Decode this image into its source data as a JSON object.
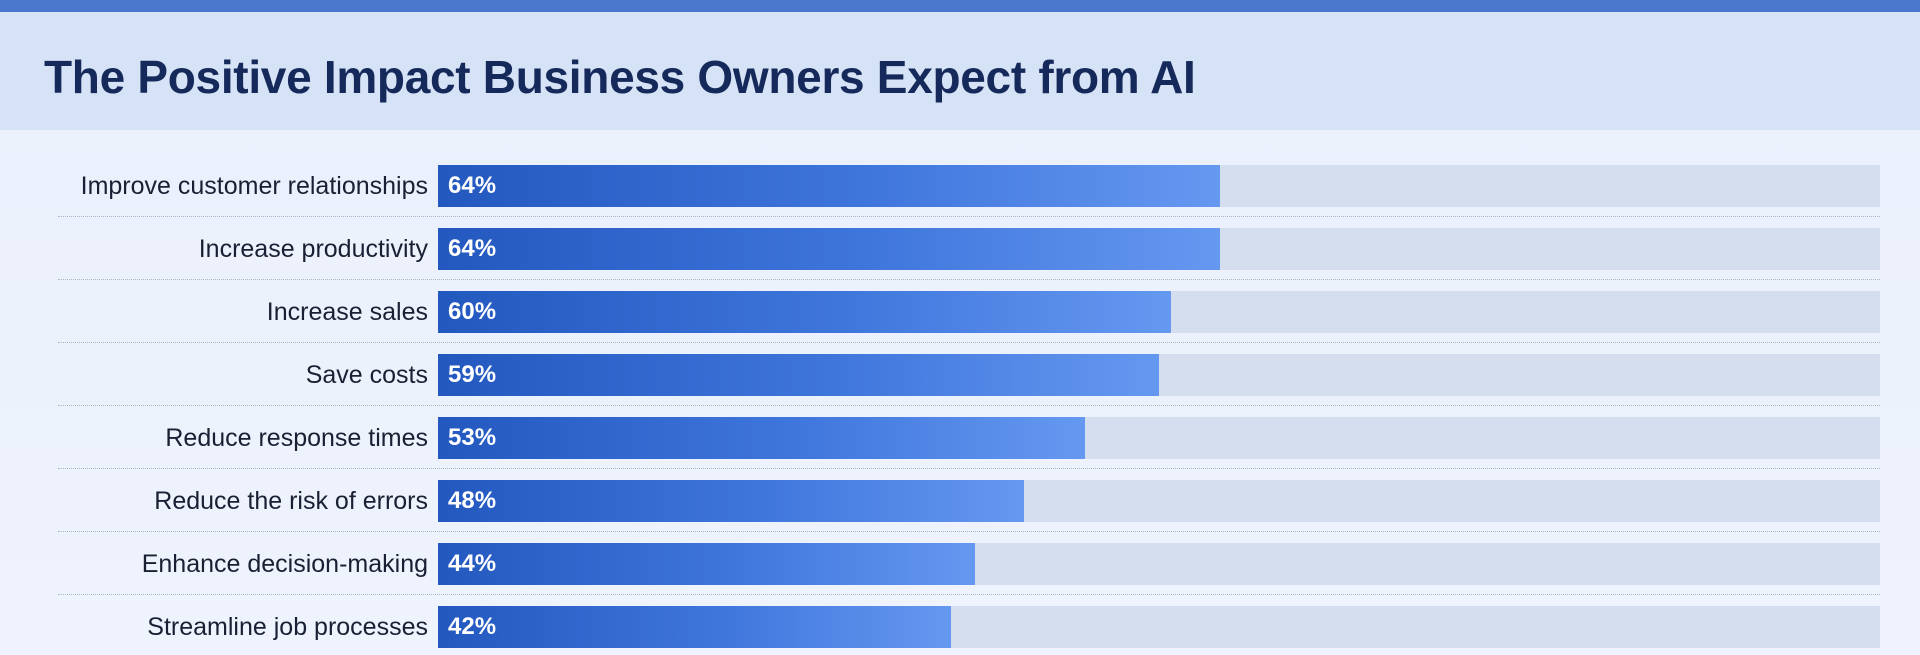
{
  "chart_data": {
    "type": "bar",
    "orientation": "horizontal",
    "title": "The Positive Impact Business Owners Expect from AI",
    "xlim": [
      0,
      100
    ],
    "unit": "%",
    "grid": false,
    "categories": [
      "Improve customer relationships",
      "Increase productivity",
      "Increase sales",
      "Save costs",
      "Reduce response times",
      "Reduce the risk of errors",
      "Enhance decision-making",
      "Streamline job processes"
    ],
    "values": [
      64,
      64,
      60,
      59,
      53,
      48,
      44,
      42
    ],
    "value_labels": [
      "64%",
      "64%",
      "60%",
      "59%",
      "53%",
      "48%",
      "44%",
      "42%"
    ],
    "colors": {
      "bar_start": "#2358bf",
      "bar_end": "#6598f0",
      "track": "#d5deee",
      "title": "#15295a",
      "header_band": "#d6e2f6",
      "top_stripe": "#4a76cc"
    }
  }
}
